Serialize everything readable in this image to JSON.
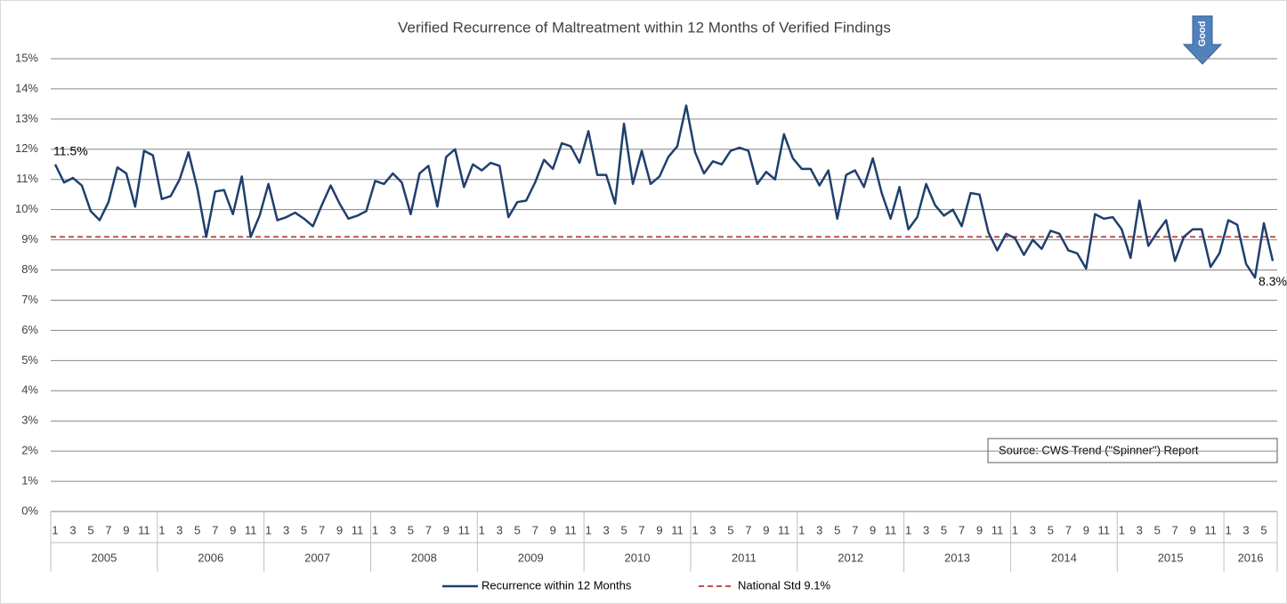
{
  "chart_data": {
    "type": "line",
    "title": "Verified Recurrence of Maltreatment within 12 Months of Verified Findings",
    "categories": [
      "1",
      null,
      "3",
      null,
      "5",
      null,
      "7",
      null,
      "9",
      null,
      "11",
      null,
      "1",
      null,
      "3",
      null,
      "5",
      null,
      "7",
      null,
      "9",
      null,
      "11",
      null,
      "1",
      null,
      "3",
      null,
      "5",
      null,
      "7",
      null,
      "9",
      null,
      "11",
      null,
      "1",
      null,
      "3",
      null,
      "5",
      null,
      "7",
      null,
      "9",
      null,
      "11",
      null,
      "1",
      null,
      "3",
      null,
      "5",
      null,
      "7",
      null,
      "9",
      null,
      "11",
      null,
      "1",
      null,
      "3",
      null,
      "5",
      null,
      "7",
      null,
      "9",
      null,
      "11",
      null,
      "1",
      null,
      "3",
      null,
      "5",
      null,
      "7",
      null,
      "9",
      null,
      "11",
      null,
      "1",
      null,
      "3",
      null,
      "5",
      null,
      "7",
      null,
      "9",
      null,
      "11",
      null,
      "1",
      null,
      "3",
      null,
      "5",
      null,
      "7",
      null,
      "9",
      null,
      "11",
      null,
      "1",
      null,
      "3",
      null,
      "5",
      null,
      "7",
      null,
      "9",
      null,
      "11",
      null,
      "1",
      null,
      "3",
      null,
      "5",
      null,
      "7",
      null,
      "9",
      null,
      "11",
      null,
      "1",
      null,
      "3",
      null,
      "5",
      null
    ],
    "years": [
      "2005",
      "2006",
      "2007",
      "2008",
      "2009",
      "2010",
      "2011",
      "2012",
      "2013",
      "2014",
      "2015",
      "2016"
    ],
    "series": [
      {
        "name": "Recurrence within 12 Months",
        "color": "#1f3f6e",
        "values": [
          11.5,
          10.9,
          11.05,
          10.8,
          9.95,
          9.65,
          10.25,
          11.4,
          11.2,
          10.1,
          11.95,
          11.8,
          10.35,
          10.45,
          11.0,
          11.9,
          10.7,
          9.1,
          10.6,
          10.65,
          9.85,
          11.1,
          9.1,
          9.8,
          10.85,
          9.65,
          9.75,
          9.9,
          9.7,
          9.45,
          10.15,
          10.8,
          10.2,
          9.7,
          9.8,
          9.95,
          10.95,
          10.85,
          11.2,
          10.9,
          9.85,
          11.2,
          11.45,
          10.1,
          11.75,
          12.0,
          10.75,
          11.5,
          11.3,
          11.55,
          11.45,
          9.75,
          10.25,
          10.3,
          10.9,
          11.65,
          11.35,
          12.2,
          12.1,
          11.55,
          12.6,
          11.15,
          11.15,
          10.2,
          12.85,
          10.85,
          11.95,
          10.85,
          11.1,
          11.75,
          12.1,
          13.45,
          11.9,
          11.2,
          11.6,
          11.5,
          11.95,
          12.05,
          11.95,
          10.85,
          11.25,
          11.0,
          12.5,
          11.7,
          11.35,
          11.35,
          10.8,
          11.3,
          9.7,
          11.15,
          11.3,
          10.75,
          11.7,
          10.55,
          9.7,
          10.75,
          9.35,
          9.75,
          10.85,
          10.15,
          9.8,
          10.0,
          9.45,
          10.55,
          10.5,
          9.25,
          8.65,
          9.2,
          9.05,
          8.5,
          9.0,
          8.7,
          9.3,
          9.2,
          8.65,
          8.55,
          8.05,
          9.85,
          9.7,
          9.75,
          9.35,
          8.4,
          10.3,
          8.8,
          9.25,
          9.65,
          8.3,
          9.1,
          9.35,
          9.35,
          8.1,
          8.55,
          9.65,
          9.5,
          8.2,
          7.75,
          9.55,
          8.3
        ],
        "value_labels": [
          "11.5%",
          null,
          null,
          null,
          null,
          null,
          null,
          null,
          null,
          null,
          null,
          null,
          null,
          null,
          null,
          null,
          null,
          null,
          null,
          null,
          null,
          null,
          null,
          null,
          null,
          null,
          null,
          null,
          null,
          null,
          null,
          null,
          null,
          null,
          null,
          null,
          null,
          null,
          null,
          null,
          null,
          null,
          null,
          null,
          null,
          null,
          null,
          null,
          null,
          null,
          null,
          null,
          null,
          null,
          null,
          null,
          null,
          null,
          null,
          null,
          null,
          null,
          null,
          null,
          null,
          null,
          null,
          null,
          null,
          null,
          null,
          null,
          null,
          null,
          null,
          null,
          null,
          null,
          null,
          null,
          null,
          null,
          null,
          null,
          null,
          null,
          null,
          null,
          null,
          null,
          null,
          null,
          null,
          null,
          null,
          null,
          null,
          null,
          null,
          null,
          null,
          null,
          null,
          null,
          null,
          null,
          null,
          null,
          null,
          null,
          null,
          null,
          null,
          null,
          null,
          null,
          null,
          null,
          null,
          null,
          null,
          null,
          null,
          null,
          null,
          null,
          null,
          null,
          null,
          null,
          null,
          null,
          null,
          null,
          null,
          null,
          null,
          "8.3%"
        ]
      }
    ],
    "reference_line": {
      "name": "National Std 9.1%",
      "value": 9.1,
      "color": "#c0504d"
    },
    "ylim": [
      0,
      15
    ],
    "yticks": [
      {
        "value": 0,
        "label": "0%"
      },
      {
        "value": 1,
        "label": "1%"
      },
      {
        "value": 2,
        "label": "2%"
      },
      {
        "value": 3,
        "label": "3%"
      },
      {
        "value": 4,
        "label": "4%"
      },
      {
        "value": 5,
        "label": "5%"
      },
      {
        "value": 6,
        "label": "6%"
      },
      {
        "value": 7,
        "label": "7%"
      },
      {
        "value": 8,
        "label": "8%"
      },
      {
        "value": 9,
        "label": "9%"
      },
      {
        "value": 10,
        "label": "10%"
      },
      {
        "value": 11,
        "label": "11%"
      },
      {
        "value": 12,
        "label": "12%"
      },
      {
        "value": 13,
        "label": "13%"
      },
      {
        "value": 14,
        "label": "14%"
      },
      {
        "value": 15,
        "label": "15%"
      }
    ],
    "grid": true,
    "legend": "bottom",
    "source_note": "Source: CWS Trend (\"Spinner\") Report",
    "arrow_label": "Good"
  }
}
